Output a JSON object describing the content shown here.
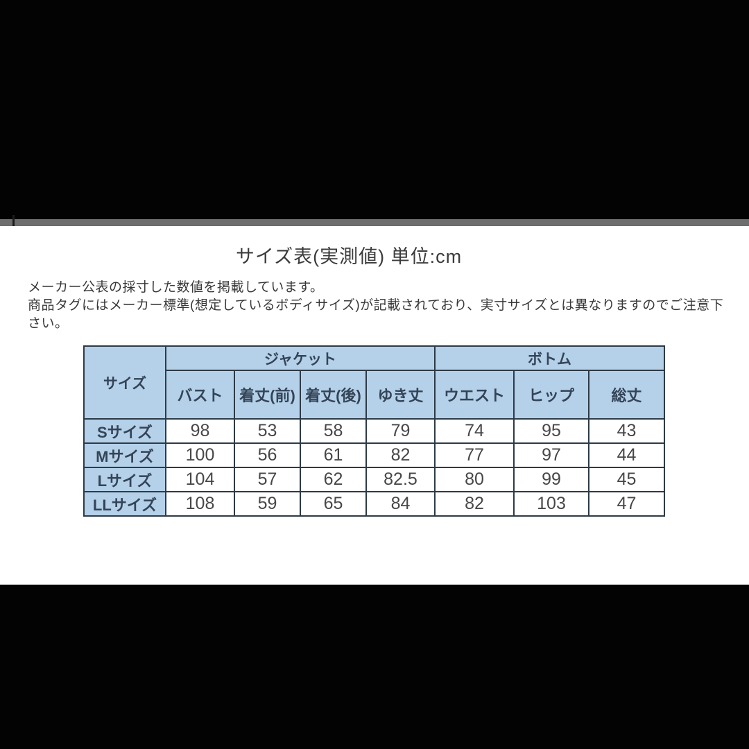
{
  "page": {
    "title": "サイズ表(実測値) 単位:cm",
    "note_line1": "メーカー公表の採寸した数値を掲載しています。",
    "note_line2": "商品タグにはメーカー標準(想定しているボディサイズ)が記載されており、実寸サイズとは異なりますのでご注意下さい。"
  },
  "table": {
    "corner_header": "サイズ",
    "group_headers": [
      {
        "label": "ジャケット",
        "span": 4
      },
      {
        "label": "ボトム",
        "span": 3
      }
    ],
    "col_headers": [
      "バスト",
      "着丈(前)",
      "着丈(後)",
      "ゆき丈",
      "ウエスト",
      "ヒップ",
      "総丈"
    ],
    "rows": [
      {
        "label": "Sサイズ",
        "values": [
          "98",
          "53",
          "58",
          "79",
          "74",
          "95",
          "43"
        ]
      },
      {
        "label": "Mサイズ",
        "values": [
          "100",
          "56",
          "61",
          "82",
          "77",
          "97",
          "44"
        ]
      },
      {
        "label": "Lサイズ",
        "values": [
          "104",
          "57",
          "62",
          "82.5",
          "80",
          "99",
          "45"
        ]
      },
      {
        "label": "LLサイズ",
        "values": [
          "108",
          "59",
          "65",
          "84",
          "82",
          "103",
          "47"
        ]
      }
    ]
  },
  "colors": {
    "header_fill": "#b5d1ea",
    "border": "#2d3a46",
    "header_text": "#344457",
    "value_text": "#474747",
    "divider_strip": "#6e6e6e",
    "letterbox": "#030303"
  }
}
